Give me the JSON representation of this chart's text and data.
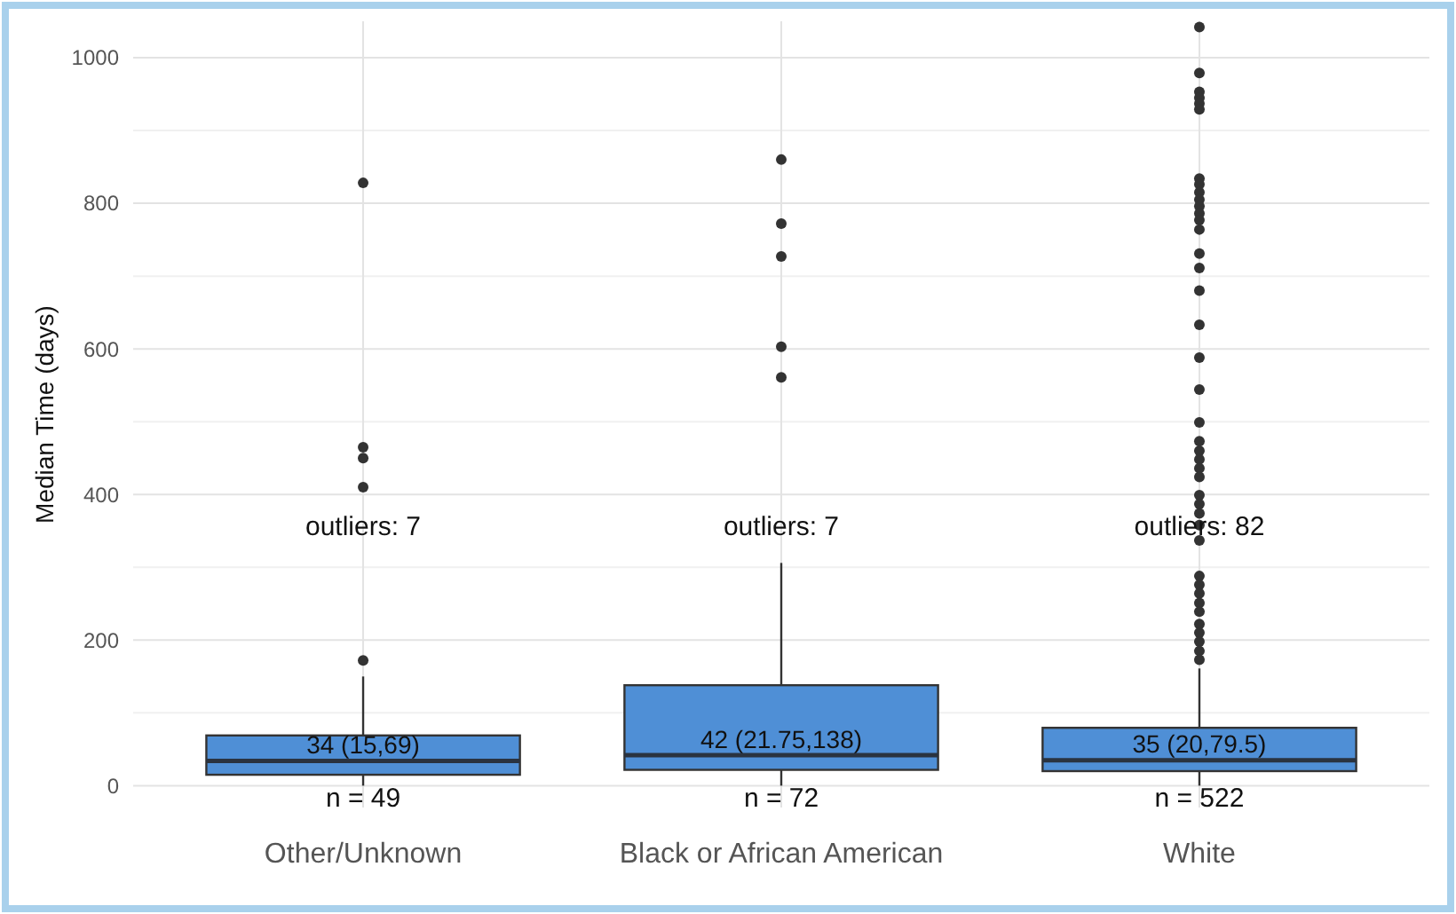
{
  "chart_data": {
    "type": "box",
    "ylabel": "Median Time (days)",
    "categories": [
      "Other/Unknown",
      "Black or African American",
      "White"
    ],
    "color": "#4f8fd6",
    "ylim": [
      -30,
      1050
    ],
    "yticks": [
      0,
      200,
      400,
      600,
      800,
      1000
    ],
    "grid": true,
    "boxes": [
      {
        "low": 0,
        "q1": 15,
        "median": 34,
        "q3": 69,
        "high": 150,
        "outliers": [
          828,
          465,
          450,
          410,
          172
        ]
      },
      {
        "low": 0,
        "q1": 21.75,
        "median": 42,
        "q3": 138,
        "high": 306,
        "outliers": [
          860,
          772,
          727,
          603,
          561
        ]
      },
      {
        "low": 0,
        "q1": 20,
        "median": 35,
        "q3": 79.5,
        "high": 161,
        "outliers": [
          1042,
          979,
          953,
          945,
          937,
          929,
          834,
          826,
          815,
          805,
          796,
          786,
          777,
          764,
          731,
          711,
          680,
          633,
          588,
          544,
          499,
          473,
          460,
          448,
          436,
          424,
          399,
          387,
          374,
          358,
          337,
          288,
          276,
          264,
          251,
          239,
          222,
          210,
          198,
          185,
          173
        ]
      }
    ],
    "annotations": [
      "34 (15,69)",
      "42 (21.75,138)",
      "35 (20,79.5)",
      "outliers: 7",
      "outliers: 7",
      "outliers: 82",
      "n = 49",
      "n = 72",
      "n = 522"
    ]
  }
}
